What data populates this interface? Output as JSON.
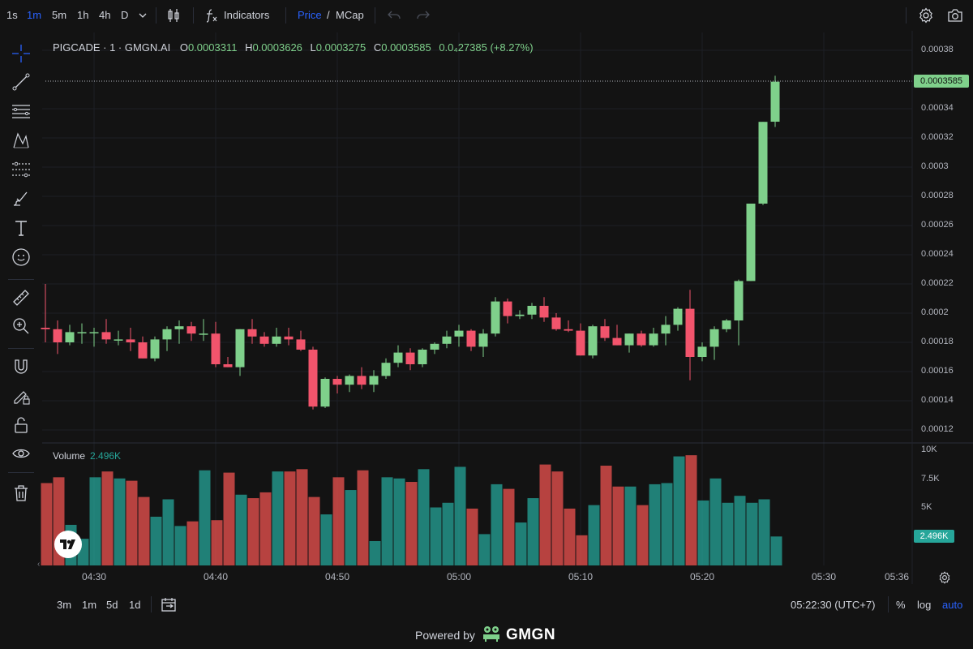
{
  "toolbar": {
    "timeframes": [
      "1s",
      "1m",
      "5m",
      "1h",
      "4h",
      "D"
    ],
    "active_timeframe": "1m",
    "indicators_label": "Indicators",
    "price_label": "Price",
    "slash": "/",
    "mcap_label": "MCap"
  },
  "legend": {
    "symbol": "PIGCADE · 1 · GMGN.AI",
    "open_label": "O",
    "open": "0.0003311",
    "high_label": "H",
    "high": "0.0003626",
    "low_label": "L",
    "low": "0.0003275",
    "close_label": "C",
    "close": "0.0003585",
    "change": "0.0₄27385 (+8.27%)"
  },
  "volume_legend": {
    "label": "Volume",
    "value": "2.496K"
  },
  "price_axis": {
    "labels": [
      "0.00038",
      "0.00034",
      "0.00032",
      "0.0003",
      "0.00028",
      "0.00026",
      "0.00024",
      "0.00022",
      "0.0002",
      "0.00018",
      "0.00016",
      "0.00014",
      "0.00012"
    ],
    "current_price": "0.0003585"
  },
  "volume_axis": {
    "labels": [
      "10K",
      "7.5K",
      "5K"
    ],
    "current": "2.496K"
  },
  "time_axis": [
    "04:30",
    "04:40",
    "04:50",
    "05:00",
    "05:10",
    "05:20",
    "05:30",
    "05:36"
  ],
  "bottom": {
    "ranges": [
      "3m",
      "1m",
      "5d",
      "1d"
    ],
    "clock": "05:22:30 (UTC+7)",
    "percent": "%",
    "log": "log",
    "auto": "auto"
  },
  "footer": {
    "powered": "Powered by",
    "brand": "GMGN"
  },
  "colors": {
    "up": "#7fd08b",
    "down": "#f2546c",
    "vol_up": "#26a69a",
    "vol_down": "#ef5350",
    "accent": "#2962ff",
    "bg": "#131313"
  },
  "chart_data": {
    "type": "candlestick",
    "title": "PIGCADE · 1 · GMGN.AI",
    "y_range": [
      0.00012,
      0.00038
    ],
    "volume_range": [
      0,
      10000
    ],
    "candles": [
      {
        "o": 0.00019,
        "h": 0.00022,
        "l": 0.00018,
        "c": 0.000189,
        "v": 7100
      },
      {
        "o": 0.000189,
        "h": 0.000195,
        "l": 0.000172,
        "c": 0.00018,
        "v": 7600
      },
      {
        "o": 0.00018,
        "h": 0.000192,
        "l": 0.000178,
        "c": 0.000187,
        "v": 3500
      },
      {
        "o": 0.000187,
        "h": 0.000193,
        "l": 0.000179,
        "c": 0.000187,
        "v": 2300
      },
      {
        "o": 0.000187,
        "h": 0.00019,
        "l": 0.000177,
        "c": 0.000187,
        "v": 7600
      },
      {
        "o": 0.000187,
        "h": 0.000196,
        "l": 0.000179,
        "c": 0.000182,
        "v": 8100
      },
      {
        "o": 0.000182,
        "h": 0.000188,
        "l": 0.000178,
        "c": 0.000182,
        "v": 7500
      },
      {
        "o": 0.000182,
        "h": 0.00019,
        "l": 0.000174,
        "c": 0.00018,
        "v": 7300
      },
      {
        "o": 0.00018,
        "h": 0.000184,
        "l": 0.000169,
        "c": 0.000169,
        "v": 5900
      },
      {
        "o": 0.000169,
        "h": 0.000184,
        "l": 0.000167,
        "c": 0.000182,
        "v": 4200
      },
      {
        "o": 0.000182,
        "h": 0.000191,
        "l": 0.000174,
        "c": 0.000189,
        "v": 5700
      },
      {
        "o": 0.000189,
        "h": 0.000195,
        "l": 0.000179,
        "c": 0.000191,
        "v": 3400
      },
      {
        "o": 0.000191,
        "h": 0.000194,
        "l": 0.000181,
        "c": 0.000186,
        "v": 3800
      },
      {
        "o": 0.000186,
        "h": 0.000196,
        "l": 0.000181,
        "c": 0.000186,
        "v": 8200
      },
      {
        "o": 0.000186,
        "h": 0.000194,
        "l": 0.000163,
        "c": 0.000165,
        "v": 3900
      },
      {
        "o": 0.000165,
        "h": 0.00017,
        "l": 0.000163,
        "c": 0.000163,
        "v": 8000
      },
      {
        "o": 0.000163,
        "h": 0.000189,
        "l": 0.000157,
        "c": 0.000189,
        "v": 6100
      },
      {
        "o": 0.000189,
        "h": 0.000196,
        "l": 0.000179,
        "c": 0.000184,
        "v": 5800
      },
      {
        "o": 0.000184,
        "h": 0.000187,
        "l": 0.000177,
        "c": 0.000179,
        "v": 6300
      },
      {
        "o": 0.000179,
        "h": 0.00019,
        "l": 0.000177,
        "c": 0.000184,
        "v": 8100
      },
      {
        "o": 0.000184,
        "h": 0.00019,
        "l": 0.000178,
        "c": 0.000182,
        "v": 8100
      },
      {
        "o": 0.000182,
        "h": 0.000188,
        "l": 0.000174,
        "c": 0.000175,
        "v": 8300
      },
      {
        "o": 0.000175,
        "h": 0.000177,
        "l": 0.000134,
        "c": 0.000136,
        "v": 5900
      },
      {
        "o": 0.000136,
        "h": 0.000156,
        "l": 0.000135,
        "c": 0.000155,
        "v": 4400
      },
      {
        "o": 0.000155,
        "h": 0.000157,
        "l": 0.000145,
        "c": 0.000151,
        "v": 7600
      },
      {
        "o": 0.000151,
        "h": 0.000158,
        "l": 0.000146,
        "c": 0.000157,
        "v": 6500
      },
      {
        "o": 0.000157,
        "h": 0.000163,
        "l": 0.000148,
        "c": 0.000151,
        "v": 8200
      },
      {
        "o": 0.000151,
        "h": 0.000161,
        "l": 0.000146,
        "c": 0.000157,
        "v": 2100
      },
      {
        "o": 0.000157,
        "h": 0.000169,
        "l": 0.000155,
        "c": 0.000166,
        "v": 7600
      },
      {
        "o": 0.000166,
        "h": 0.000178,
        "l": 0.000163,
        "c": 0.000173,
        "v": 7500
      },
      {
        "o": 0.000173,
        "h": 0.000176,
        "l": 0.000161,
        "c": 0.000165,
        "v": 7200
      },
      {
        "o": 0.000165,
        "h": 0.000176,
        "l": 0.000163,
        "c": 0.000175,
        "v": 8300
      },
      {
        "o": 0.000175,
        "h": 0.00018,
        "l": 0.000172,
        "c": 0.000179,
        "v": 5000
      },
      {
        "o": 0.000179,
        "h": 0.000188,
        "l": 0.000176,
        "c": 0.000184,
        "v": 5400
      },
      {
        "o": 0.000184,
        "h": 0.000192,
        "l": 0.000177,
        "c": 0.000188,
        "v": 8500
      },
      {
        "o": 0.000188,
        "h": 0.000189,
        "l": 0.000174,
        "c": 0.000177,
        "v": 4900
      },
      {
        "o": 0.000177,
        "h": 0.000189,
        "l": 0.00017,
        "c": 0.000186,
        "v": 2700
      },
      {
        "o": 0.000186,
        "h": 0.000211,
        "l": 0.000184,
        "c": 0.000208,
        "v": 7000
      },
      {
        "o": 0.000208,
        "h": 0.00021,
        "l": 0.000193,
        "c": 0.000198,
        "v": 6600
      },
      {
        "o": 0.000198,
        "h": 0.000202,
        "l": 0.000196,
        "c": 0.000199,
        "v": 3700
      },
      {
        "o": 0.000199,
        "h": 0.000207,
        "l": 0.000196,
        "c": 0.000205,
        "v": 5800
      },
      {
        "o": 0.000205,
        "h": 0.000211,
        "l": 0.000194,
        "c": 0.000197,
        "v": 8700
      },
      {
        "o": 0.000197,
        "h": 0.0002,
        "l": 0.000188,
        "c": 0.000189,
        "v": 8100
      },
      {
        "o": 0.000189,
        "h": 0.000195,
        "l": 0.000187,
        "c": 0.000188,
        "v": 4900
      },
      {
        "o": 0.000188,
        "h": 0.000193,
        "l": 0.000171,
        "c": 0.000171,
        "v": 2600
      },
      {
        "o": 0.000171,
        "h": 0.000192,
        "l": 0.000169,
        "c": 0.000191,
        "v": 5200
      },
      {
        "o": 0.000191,
        "h": 0.000196,
        "l": 0.000181,
        "c": 0.000183,
        "v": 8600
      },
      {
        "o": 0.000183,
        "h": 0.000192,
        "l": 0.000178,
        "c": 0.000178,
        "v": 6800
      },
      {
        "o": 0.000178,
        "h": 0.000186,
        "l": 0.000173,
        "c": 0.000186,
        "v": 6800
      },
      {
        "o": 0.000186,
        "h": 0.000188,
        "l": 0.000177,
        "c": 0.000178,
        "v": 5200
      },
      {
        "o": 0.000178,
        "h": 0.00019,
        "l": 0.000177,
        "c": 0.000186,
        "v": 7000
      },
      {
        "o": 0.000186,
        "h": 0.000198,
        "l": 0.000178,
        "c": 0.000192,
        "v": 7100
      },
      {
        "o": 0.000192,
        "h": 0.000204,
        "l": 0.000188,
        "c": 0.000203,
        "v": 9400
      },
      {
        "o": 0.000203,
        "h": 0.000216,
        "l": 0.000154,
        "c": 0.00017,
        "v": 9500
      },
      {
        "o": 0.00017,
        "h": 0.00018,
        "l": 0.000167,
        "c": 0.000177,
        "v": 5600
      },
      {
        "o": 0.000177,
        "h": 0.000191,
        "l": 0.000168,
        "c": 0.000189,
        "v": 7500
      },
      {
        "o": 0.000189,
        "h": 0.000196,
        "l": 0.000187,
        "c": 0.000195,
        "v": 5400
      },
      {
        "o": 0.000195,
        "h": 0.000223,
        "l": 0.000178,
        "c": 0.000222,
        "v": 6000
      },
      {
        "o": 0.000222,
        "h": 0.000275,
        "l": 0.000222,
        "c": 0.000275,
        "v": 5400
      },
      {
        "o": 0.000275,
        "h": 0.000331,
        "l": 0.000274,
        "c": 0.000331,
        "v": 5700
      },
      {
        "o": 0.0003311,
        "h": 0.0003626,
        "l": 0.0003275,
        "c": 0.0003585,
        "v": 2496
      }
    ]
  }
}
